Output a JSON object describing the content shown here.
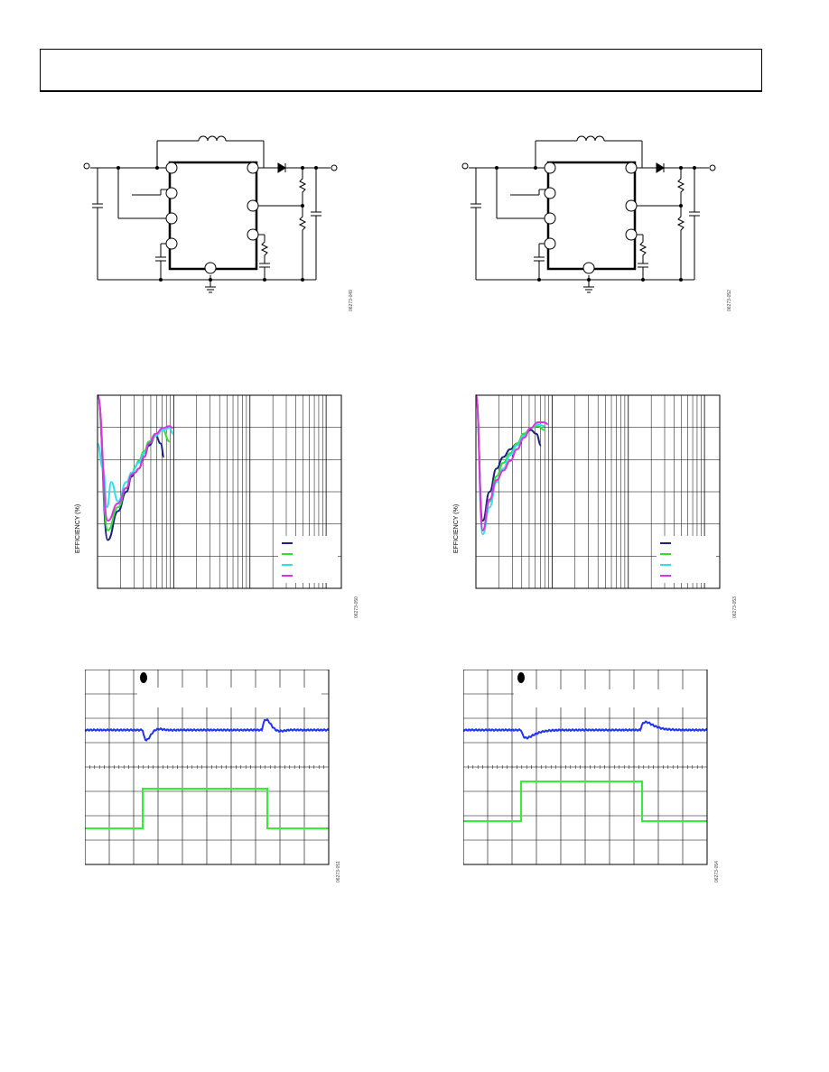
{
  "header": {
    "text": ""
  },
  "figures": {
    "circuit_left": {
      "id": "06273-049"
    },
    "circuit_right": {
      "id": "06273-052"
    },
    "eff_left": {
      "id": "06273-050",
      "ylabel": "EFFICIENCY (%)"
    },
    "eff_right": {
      "id": "06273-053",
      "ylabel": "EFFICIENCY (%)"
    },
    "scope_left": {
      "id": "06273-051"
    },
    "scope_right": {
      "id": "06273-054"
    }
  },
  "colors": {
    "navy": "#1a237e",
    "green": "#33dd33",
    "cyan": "#33ddee",
    "magenta": "#dd33dd",
    "scope_blue": "#2233ee",
    "scope_green": "#33ee33"
  },
  "chart_data": [
    {
      "type": "line",
      "x_scale": "log",
      "ylabel": "EFFICIENCY (%)",
      "grid": true,
      "legend": "bottom-right",
      "series": [
        {
          "color": "#1a237e",
          "points": [
            [
              0,
              1
            ],
            [
              0.15,
              0.25
            ],
            [
              0.3,
              0.4
            ],
            [
              0.42,
              0.5
            ],
            [
              0.5,
              0.58
            ],
            [
              0.55,
              0.6
            ],
            [
              0.6,
              0.62
            ],
            [
              0.68,
              0.68
            ],
            [
              0.75,
              0.74
            ],
            [
              0.85,
              0.79
            ],
            [
              0.92,
              0.75
            ],
            [
              0.97,
              0.68
            ]
          ]
        },
        {
          "color": "#33dd33",
          "points": [
            [
              0,
              1
            ],
            [
              0.15,
              0.3
            ],
            [
              0.3,
              0.42
            ],
            [
              0.42,
              0.52
            ],
            [
              0.5,
              0.59
            ],
            [
              0.55,
              0.63
            ],
            [
              0.6,
              0.66
            ],
            [
              0.68,
              0.71
            ],
            [
              0.75,
              0.76
            ],
            [
              0.85,
              0.8
            ],
            [
              0.95,
              0.82
            ],
            [
              1.05,
              0.76
            ]
          ]
        },
        {
          "color": "#33ddee",
          "points": [
            [
              0,
              0.75
            ],
            [
              0.08,
              0.62
            ],
            [
              0.14,
              0.42
            ],
            [
              0.2,
              0.55
            ],
            [
              0.3,
              0.45
            ],
            [
              0.42,
              0.55
            ],
            [
              0.5,
              0.6
            ],
            [
              0.6,
              0.65
            ],
            [
              0.68,
              0.7
            ],
            [
              0.75,
              0.75
            ],
            [
              0.85,
              0.79
            ],
            [
              0.95,
              0.82
            ],
            [
              1.05,
              0.83
            ],
            [
              1.1,
              0.8
            ]
          ]
        },
        {
          "color": "#dd33dd",
          "points": [
            [
              0,
              1
            ],
            [
              0.15,
              0.35
            ],
            [
              0.3,
              0.44
            ],
            [
              0.42,
              0.52
            ],
            [
              0.5,
              0.59
            ],
            [
              0.55,
              0.6
            ],
            [
              0.6,
              0.62
            ],
            [
              0.68,
              0.68
            ],
            [
              0.75,
              0.75
            ],
            [
              0.85,
              0.8
            ],
            [
              0.95,
              0.83
            ],
            [
              1.05,
              0.84
            ],
            [
              1.1,
              0.83
            ]
          ]
        }
      ]
    },
    {
      "type": "line",
      "x_scale": "log",
      "ylabel": "EFFICIENCY (%)",
      "grid": true,
      "legend": "bottom-right",
      "series": [
        {
          "color": "#1a237e",
          "points": [
            [
              0,
              1
            ],
            [
              0.1,
              0.35
            ],
            [
              0.2,
              0.5
            ],
            [
              0.3,
              0.62
            ],
            [
              0.4,
              0.68
            ],
            [
              0.5,
              0.72
            ],
            [
              0.6,
              0.75
            ],
            [
              0.7,
              0.8
            ],
            [
              0.8,
              0.82
            ],
            [
              0.88,
              0.8
            ],
            [
              0.95,
              0.74
            ]
          ]
        },
        {
          "color": "#33dd33",
          "points": [
            [
              0,
              1
            ],
            [
              0.1,
              0.3
            ],
            [
              0.2,
              0.45
            ],
            [
              0.3,
              0.58
            ],
            [
              0.4,
              0.65
            ],
            [
              0.5,
              0.7
            ],
            [
              0.6,
              0.75
            ],
            [
              0.7,
              0.8
            ],
            [
              0.8,
              0.83
            ],
            [
              0.9,
              0.84
            ],
            [
              1.0,
              0.82
            ]
          ]
        },
        {
          "color": "#33ddee",
          "points": [
            [
              0,
              1
            ],
            [
              0.1,
              0.28
            ],
            [
              0.2,
              0.42
            ],
            [
              0.3,
              0.55
            ],
            [
              0.4,
              0.62
            ],
            [
              0.5,
              0.69
            ],
            [
              0.6,
              0.74
            ],
            [
              0.7,
              0.79
            ],
            [
              0.8,
              0.83
            ],
            [
              0.9,
              0.85
            ],
            [
              1.0,
              0.84
            ]
          ]
        },
        {
          "color": "#dd33dd",
          "points": [
            [
              0,
              1
            ],
            [
              0.1,
              0.3
            ],
            [
              0.2,
              0.46
            ],
            [
              0.3,
              0.56
            ],
            [
              0.4,
              0.61
            ],
            [
              0.5,
              0.66
            ],
            [
              0.6,
              0.72
            ],
            [
              0.7,
              0.78
            ],
            [
              0.8,
              0.83
            ],
            [
              0.9,
              0.86
            ],
            [
              1.0,
              0.86
            ],
            [
              1.05,
              0.85
            ]
          ]
        }
      ]
    }
  ]
}
